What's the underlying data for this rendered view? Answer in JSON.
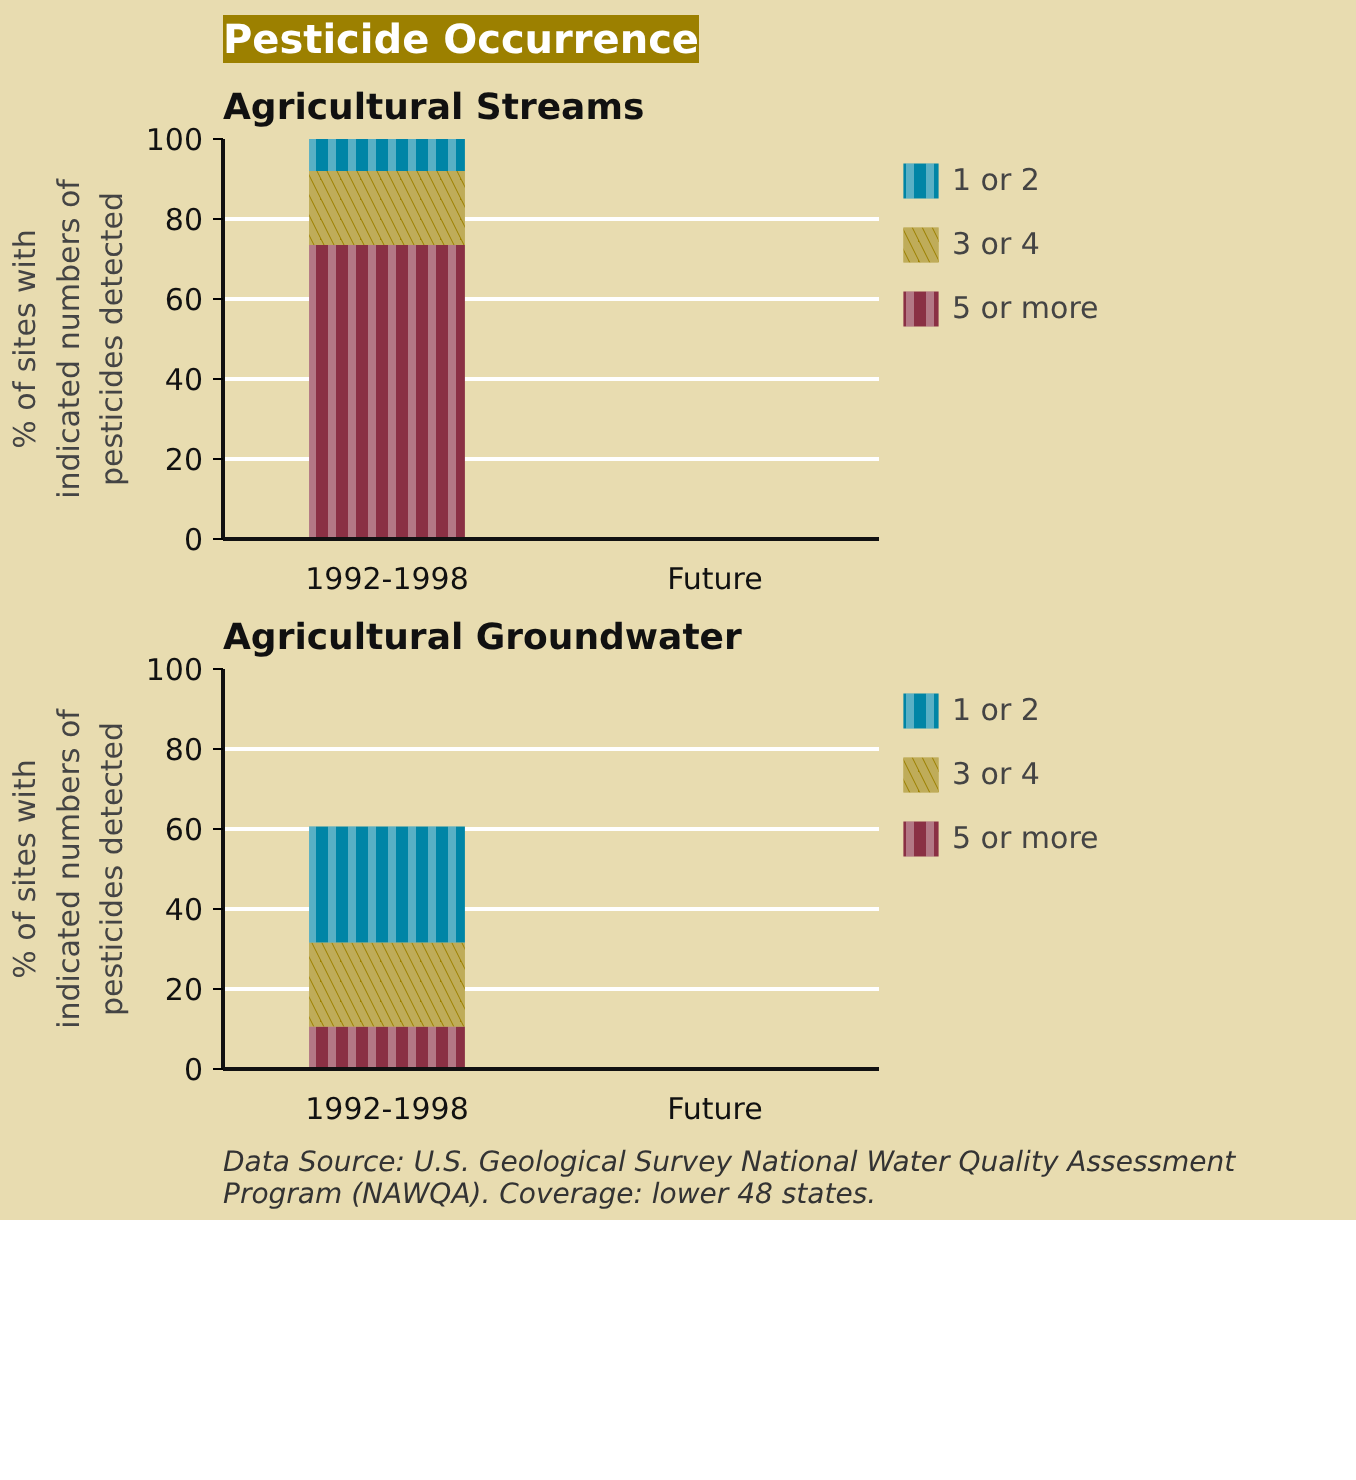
{
  "chart_data": [
    {
      "type": "bar",
      "title": "Agricultural Streams",
      "annotations": [
        "Pesticide Occurrence"
      ],
      "categories": [
        "1992-1998",
        "Future"
      ],
      "stacked": true,
      "ylabel": "% of sites with\nindicated numbers of\npesticides detected",
      "ylim": [
        0,
        100
      ],
      "yticks": [
        0,
        20,
        40,
        60,
        80,
        100
      ],
      "grid": "y",
      "legend": "right",
      "series": [
        {
          "name": "5 or more",
          "color": "#8a3044",
          "values": [
            73.5,
            null
          ]
        },
        {
          "name": "3 or 4",
          "color": "#9c8000",
          "values": [
            18.5,
            null
          ]
        },
        {
          "name": "1 or 2",
          "color": "#0085a6",
          "values": [
            8,
            null
          ]
        }
      ]
    },
    {
      "type": "bar",
      "title": "Agricultural Groundwater",
      "annotations": [
        "Data Source: U.S. Geological Survey National Water Quality Assessment\nProgram (NAWQA). Coverage: lower 48 states."
      ],
      "categories": [
        "1992-1998",
        "Future"
      ],
      "stacked": true,
      "ylabel": "% of sites with\nindicated numbers of\npesticides detected",
      "ylim": [
        0,
        100
      ],
      "yticks": [
        0,
        20,
        40,
        60,
        80,
        100
      ],
      "grid": "y",
      "legend": "right",
      "series": [
        {
          "name": "5 or more",
          "color": "#8a3044",
          "values": [
            10.6,
            null
          ]
        },
        {
          "name": "3 or 4",
          "color": "#9c8000",
          "values": [
            21,
            null
          ]
        },
        {
          "name": "1 or 2",
          "color": "#0085a6",
          "values": [
            29,
            null
          ]
        }
      ]
    }
  ]
}
